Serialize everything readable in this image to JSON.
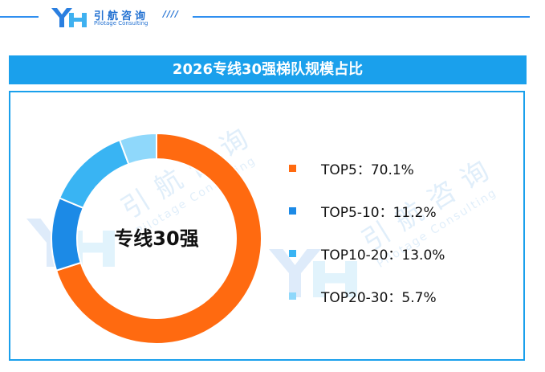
{
  "header": {
    "logo_cn": "引航咨询",
    "logo_en": "Pilotage Consulting",
    "slashes": "////"
  },
  "watermark": {
    "cn": "引航咨询",
    "en": "Pilotage Consulting"
  },
  "chart_data": {
    "type": "pie",
    "title": "2026专线30强梯队规模占比",
    "center_label": "专线30强",
    "categories": [
      "TOP5",
      "TOP5-10",
      "TOP10-20",
      "TOP20-30"
    ],
    "values": [
      70.1,
      11.2,
      13.0,
      5.7
    ],
    "value_labels": [
      "70.1%",
      "11.2%",
      "13.0%",
      "5.7%"
    ],
    "colors": [
      "#ff6a10",
      "#1c8ae6",
      "#39b4f3",
      "#8fd8fb"
    ],
    "legend_labels": [
      "TOP5：70.1%",
      "TOP5-10：11.2%",
      "TOP10-20：13.0%",
      "TOP20-30：5.7%"
    ],
    "legend_position": "right"
  }
}
